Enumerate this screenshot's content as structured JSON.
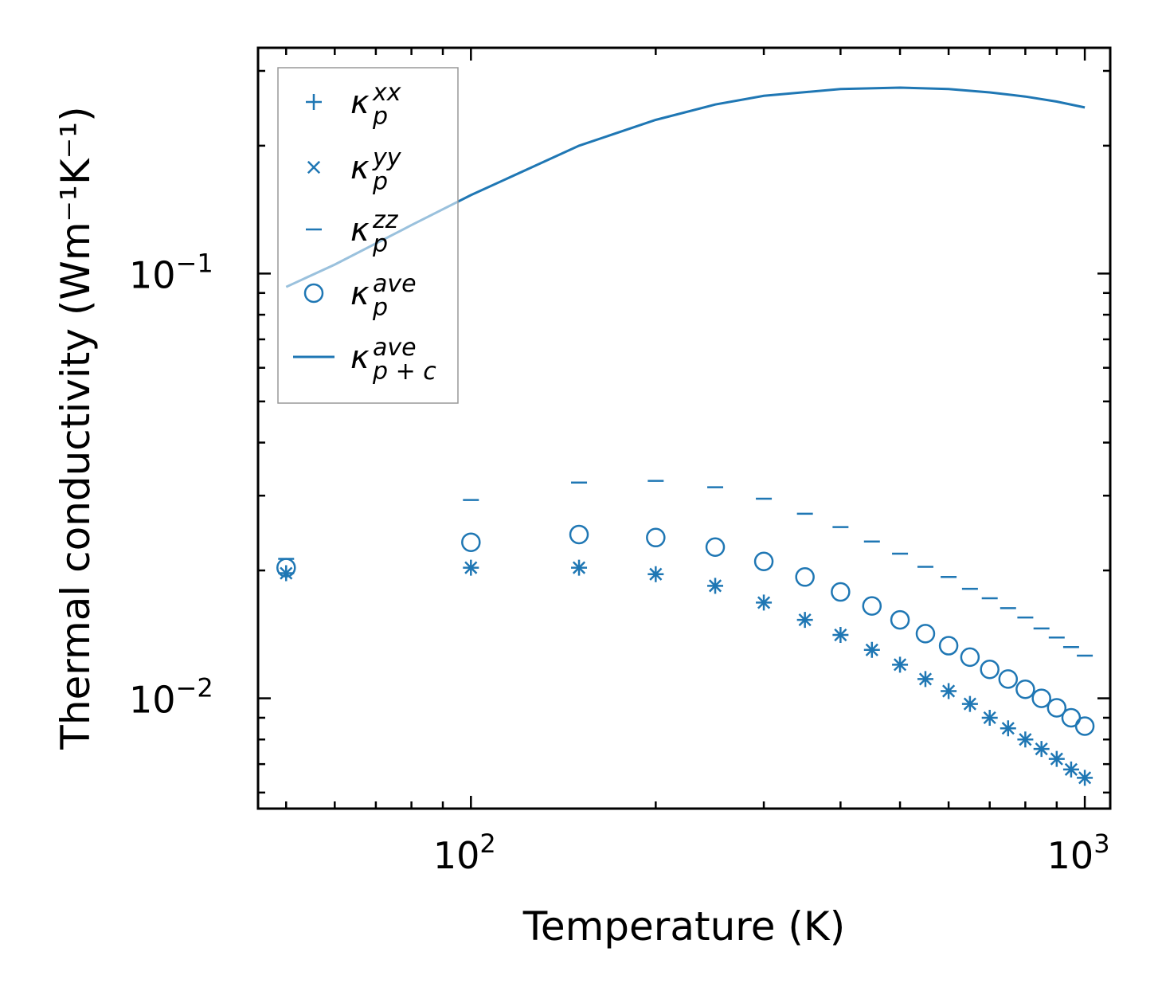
{
  "chart_data": {
    "type": "scatter",
    "title": "",
    "xlabel": "Temperature (K)",
    "ylabel": "Thermal conductivity (Wm⁻¹K⁻¹)",
    "xscale": "log",
    "yscale": "log",
    "xlim": [
      45,
      1100
    ],
    "ylim": [
      0.0055,
      0.34
    ],
    "x_ticks": [
      {
        "value": 100,
        "base": "10",
        "exp": "2"
      },
      {
        "value": 1000,
        "base": "10",
        "exp": "3"
      }
    ],
    "y_ticks": [
      {
        "value": 0.01,
        "base": "10",
        "exp": "−2"
      },
      {
        "value": 0.1,
        "base": "10",
        "exp": "−1"
      }
    ],
    "legend_position": "upper-left",
    "color": "#1f77b4",
    "series": [
      {
        "name": "κ_p^xx",
        "legend": {
          "base": "κ",
          "sub": "p",
          "sup": "xx"
        },
        "marker": "plus",
        "x": [
          50,
          100,
          150,
          200,
          250,
          300,
          350,
          400,
          450,
          500,
          550,
          600,
          650,
          700,
          750,
          800,
          850,
          900,
          950,
          1000
        ],
        "y": [
          0.0197,
          0.0203,
          0.0203,
          0.0196,
          0.0184,
          0.0168,
          0.0153,
          0.0141,
          0.013,
          0.012,
          0.0111,
          0.0104,
          0.0097,
          0.009,
          0.0085,
          0.008,
          0.0076,
          0.0072,
          0.0068,
          0.0065
        ]
      },
      {
        "name": "κ_p^yy",
        "legend": {
          "base": "κ",
          "sub": "p",
          "sup": "yy"
        },
        "marker": "x",
        "x": [
          50,
          100,
          150,
          200,
          250,
          300,
          350,
          400,
          450,
          500,
          550,
          600,
          650,
          700,
          750,
          800,
          850,
          900,
          950,
          1000
        ],
        "y": [
          0.0197,
          0.0203,
          0.0203,
          0.0196,
          0.0184,
          0.0168,
          0.0153,
          0.0141,
          0.013,
          0.012,
          0.0111,
          0.0104,
          0.0097,
          0.009,
          0.0085,
          0.008,
          0.0076,
          0.0072,
          0.0068,
          0.0065
        ]
      },
      {
        "name": "κ_p^zz",
        "legend": {
          "base": "κ",
          "sub": "p",
          "sup": "zz"
        },
        "marker": "hline",
        "x": [
          50,
          100,
          150,
          200,
          250,
          300,
          350,
          400,
          450,
          500,
          550,
          600,
          650,
          700,
          750,
          800,
          850,
          900,
          950,
          1000
        ],
        "y": [
          0.0213,
          0.0293,
          0.0322,
          0.0325,
          0.0314,
          0.0295,
          0.0272,
          0.0253,
          0.0234,
          0.0219,
          0.0204,
          0.0193,
          0.0181,
          0.0172,
          0.0163,
          0.0155,
          0.0146,
          0.0139,
          0.0132,
          0.0126
        ]
      },
      {
        "name": "κ_p^ave",
        "legend": {
          "base": "κ",
          "sub": "p",
          "sup": "ave"
        },
        "marker": "circle",
        "x": [
          50,
          100,
          150,
          200,
          250,
          300,
          350,
          400,
          450,
          500,
          550,
          600,
          650,
          700,
          750,
          800,
          850,
          900,
          950,
          1000
        ],
        "y": [
          0.0203,
          0.0233,
          0.0243,
          0.0239,
          0.0227,
          0.021,
          0.0193,
          0.0178,
          0.0165,
          0.0153,
          0.0142,
          0.0133,
          0.0125,
          0.0117,
          0.0111,
          0.0105,
          0.01,
          0.0095,
          0.009,
          0.0086
        ]
      },
      {
        "name": "κ_p+c^ave",
        "legend": {
          "base": "κ",
          "sub": "p + c",
          "sup": "ave"
        },
        "marker": "line",
        "x": [
          50,
          60,
          80,
          100,
          150,
          200,
          250,
          300,
          400,
          500,
          600,
          700,
          800,
          900,
          1000
        ],
        "y": [
          0.093,
          0.105,
          0.13,
          0.153,
          0.2,
          0.23,
          0.25,
          0.262,
          0.272,
          0.274,
          0.272,
          0.267,
          0.261,
          0.254,
          0.246
        ]
      }
    ]
  }
}
